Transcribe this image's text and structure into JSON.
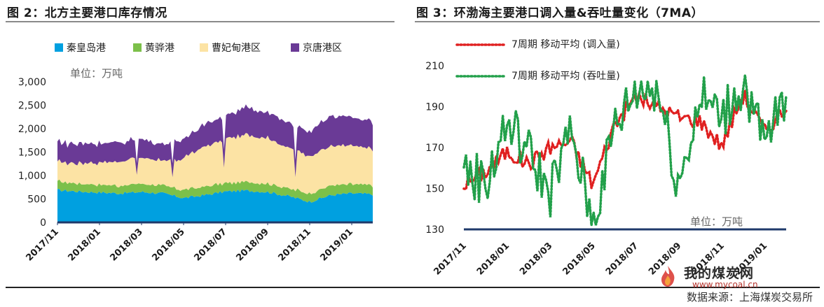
{
  "left_title": "图 2：北方主要港口库存情况",
  "right_title": "图 3：环渤海主要港口调入量&吞吐量变化（7MA）",
  "source": "数据来源：上海煤炭交易所",
  "watermark": {
    "text": "我的煤炭网",
    "url": "www.mycoal.cn"
  },
  "chart_data": [
    {
      "type": "area",
      "title": "北方主要港口库存情况",
      "unit_label": "单位：万吨",
      "ylim": [
        0,
        3000
      ],
      "y_ticks": [
        "3,000",
        "2,500",
        "2,000",
        "1,500",
        "1,000",
        "500",
        "0"
      ],
      "x_tick_labels": [
        "2017/11",
        "2018/01",
        "2018/03",
        "2018/05",
        "2018/07",
        "2018/09",
        "2018/11",
        "2019/01"
      ],
      "legend_position": "top",
      "colors": {
        "qinhuangdao": "#00a0e0",
        "huanghua": "#7cc04a",
        "caofeidian": "#fce3a4",
        "jingtang": "#6a3a96"
      },
      "x": [
        "2017/11",
        "2017/12",
        "2018/01",
        "2018/02",
        "2018/03",
        "2018/04",
        "2018/05",
        "2018/06",
        "2018/07",
        "2018/08",
        "2018/09",
        "2018/10",
        "2018/11",
        "2018/12",
        "2019/01",
        "2019/02"
      ],
      "series": [
        {
          "name": "秦皇岛港",
          "key": "qinhuangdao",
          "values": [
            690,
            660,
            640,
            620,
            650,
            620,
            520,
            580,
            660,
            680,
            650,
            560,
            440,
            580,
            620,
            600
          ]
        },
        {
          "name": "黄骅港",
          "key": "huanghua",
          "values": [
            190,
            170,
            170,
            160,
            180,
            170,
            170,
            180,
            180,
            180,
            180,
            170,
            180,
            200,
            200,
            190
          ]
        },
        {
          "name": "曹妃甸港区",
          "key": "caofeidian",
          "values": [
            420,
            430,
            480,
            520,
            560,
            520,
            680,
            850,
            960,
            1000,
            970,
            870,
            800,
            840,
            820,
            790
          ]
        },
        {
          "name": "京唐港区",
          "key": "jingtang",
          "values": [
            420,
            420,
            420,
            400,
            400,
            350,
            420,
            470,
            520,
            570,
            570,
            520,
            520,
            640,
            600,
            580
          ]
        }
      ]
    },
    {
      "type": "line",
      "title": "环渤海主要港口调入量&吞吐量变化（7MA）",
      "unit_label": "单位：万吨",
      "ylim": [
        130,
        210
      ],
      "y_ticks": [
        "210",
        "190",
        "170",
        "150",
        "130"
      ],
      "x_tick_labels": [
        "2017/11",
        "2018/01",
        "2018/03",
        "2018/05",
        "2018/07",
        "2018/09",
        "2018/11",
        "2019/01"
      ],
      "legend_position": "top-left",
      "x": [
        "2017/11",
        "2017/12",
        "2018/01",
        "2018/02",
        "2018/03",
        "2018/04",
        "2018/05",
        "2018/06",
        "2018/07",
        "2018/08",
        "2018/09",
        "2018/10",
        "2018/11",
        "2018/12",
        "2019/01",
        "2019/02"
      ],
      "series": [
        {
          "name": "7周期 移动平均 (调入量)",
          "color": "#e02020",
          "values": [
            152,
            158,
            168,
            162,
            170,
            173,
            152,
            181,
            195,
            190,
            185,
            183,
            171,
            196,
            178,
            190
          ]
        },
        {
          "name": "7周期 移动平均 (吞吐量)",
          "color": "#22a04a",
          "values": [
            160,
            152,
            182,
            168,
            148,
            178,
            132,
            180,
            198,
            200,
            152,
            195,
            185,
            202,
            170,
            198
          ]
        }
      ]
    }
  ]
}
